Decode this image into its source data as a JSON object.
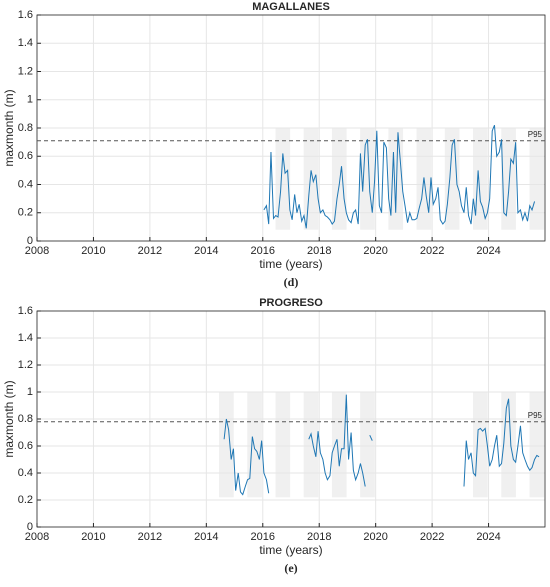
{
  "chart_data": [
    {
      "type": "line",
      "title": "MAGALLANES",
      "xlabel": "time (years)",
      "ylabel": "maxmonth (m)",
      "caption": "(d)",
      "xlim": [
        2008,
        2026
      ],
      "xticks": [
        2008,
        2010,
        2012,
        2014,
        2016,
        2018,
        2020,
        2022,
        2024
      ],
      "ylim": [
        0,
        1.6
      ],
      "yticks": [
        0,
        0.2,
        0.4,
        0.6,
        0.8,
        1,
        1.2,
        1.4,
        1.6
      ],
      "grid": true,
      "reference": {
        "value": 0.71,
        "label": "P95"
      },
      "bands": [
        [
          2016.45,
          2016.97
        ],
        [
          2017.45,
          2017.97
        ],
        [
          2018.45,
          2018.97
        ],
        [
          2019.45,
          2019.97
        ],
        [
          2020.45,
          2020.97
        ],
        [
          2021.45,
          2021.97
        ],
        [
          2022.45,
          2022.97
        ],
        [
          2023.45,
          2023.97
        ],
        [
          2024.45,
          2024.97
        ],
        [
          2025.45,
          2025.97
        ]
      ],
      "band_ylim": [
        0.08,
        0.8
      ],
      "x": [
        2016.04,
        2016.13,
        2016.21,
        2016.29,
        2016.38,
        2016.46,
        2016.54,
        2016.63,
        2016.71,
        2016.79,
        2016.88,
        2016.96,
        2017.04,
        2017.13,
        2017.21,
        2017.29,
        2017.38,
        2017.46,
        2017.54,
        2017.63,
        2017.71,
        2017.79,
        2017.88,
        2017.96,
        2018.04,
        2018.13,
        2018.21,
        2018.29,
        2018.38,
        2018.46,
        2018.54,
        2018.63,
        2018.71,
        2018.79,
        2018.88,
        2018.96,
        2019.04,
        2019.13,
        2019.21,
        2019.29,
        2019.38,
        2019.46,
        2019.54,
        2019.63,
        2019.71,
        2019.79,
        2019.88,
        2019.96,
        2020.04,
        2020.13,
        2020.21,
        2020.29,
        2020.38,
        2020.46,
        2020.54,
        2020.63,
        2020.71,
        2020.79,
        2020.88,
        2020.96,
        2021.04,
        2021.13,
        2021.21,
        2021.29,
        2021.38,
        2021.46,
        2021.54,
        2021.63,
        2021.71,
        2021.79,
        2021.88,
        2021.96,
        2022.04,
        2022.13,
        2022.21,
        2022.29,
        2022.38,
        2022.46,
        2022.54,
        2022.63,
        2022.71,
        2022.79,
        2022.88,
        2022.96,
        2023.04,
        2023.13,
        2023.21,
        2023.29,
        2023.38,
        2023.46,
        2023.54,
        2023.63,
        2023.71,
        2023.79,
        2023.88,
        2023.96,
        2024.04,
        2024.13,
        2024.21,
        2024.29,
        2024.38,
        2024.46,
        2024.54,
        2024.63,
        2024.71,
        2024.79,
        2024.88,
        2024.96,
        2025.04,
        2025.13,
        2025.21,
        2025.29,
        2025.38,
        2025.46,
        2025.54,
        2025.63
      ],
      "series": [
        {
          "color": "#1f77b4",
          "values": [
            0.22,
            0.25,
            0.12,
            0.63,
            0.16,
            0.18,
            0.17,
            0.35,
            0.62,
            0.48,
            0.5,
            0.22,
            0.15,
            0.33,
            0.2,
            0.26,
            0.14,
            0.18,
            0.09,
            0.32,
            0.5,
            0.42,
            0.47,
            0.3,
            0.2,
            0.22,
            0.18,
            0.17,
            0.15,
            0.12,
            0.14,
            0.3,
            0.4,
            0.53,
            0.3,
            0.2,
            0.15,
            0.13,
            0.2,
            0.22,
            0.12,
            0.62,
            0.35,
            0.68,
            0.72,
            0.35,
            0.2,
            0.42,
            0.78,
            0.25,
            0.2,
            0.7,
            0.66,
            0.3,
            0.18,
            0.63,
            0.2,
            0.77,
            0.55,
            0.35,
            0.25,
            0.13,
            0.2,
            0.15,
            0.15,
            0.16,
            0.23,
            0.3,
            0.45,
            0.32,
            0.2,
            0.45,
            0.26,
            0.3,
            0.38,
            0.15,
            0.12,
            0.14,
            0.26,
            0.45,
            0.68,
            0.72,
            0.4,
            0.35,
            0.25,
            0.2,
            0.38,
            0.18,
            0.12,
            0.3,
            0.18,
            0.5,
            0.28,
            0.24,
            0.16,
            0.2,
            0.3,
            0.78,
            0.82,
            0.6,
            0.63,
            0.72,
            0.2,
            0.18,
            0.35,
            0.58,
            0.55,
            0.7,
            0.2,
            0.22,
            0.15,
            0.2,
            0.14,
            0.25,
            0.22,
            0.28
          ]
        }
      ]
    },
    {
      "type": "line",
      "title": "PROGRESO",
      "xlabel": "time (years)",
      "ylabel": "maxmonth (m)",
      "caption": "(e)",
      "xlim": [
        2008,
        2026
      ],
      "xticks": [
        2008,
        2010,
        2012,
        2014,
        2016,
        2018,
        2020,
        2022,
        2024
      ],
      "ylim": [
        0,
        1.6
      ],
      "yticks": [
        0,
        0.2,
        0.4,
        0.6,
        0.8,
        1,
        1.2,
        1.4,
        1.6
      ],
      "grid": true,
      "reference": {
        "value": 0.78,
        "label": "P95"
      },
      "bands": [
        [
          2014.45,
          2014.97
        ],
        [
          2015.45,
          2015.97
        ],
        [
          2016.45,
          2016.97
        ],
        [
          2017.45,
          2017.97
        ],
        [
          2018.45,
          2018.97
        ],
        [
          2019.45,
          2019.97
        ],
        [
          2023.45,
          2023.97
        ],
        [
          2024.45,
          2024.97
        ],
        [
          2025.45,
          2025.97
        ]
      ],
      "band_ylim": [
        0.22,
        1.0
      ],
      "x": [
        2014.63,
        2014.71,
        2014.79,
        2014.88,
        2014.96,
        2015.04,
        2015.13,
        2015.21,
        2015.29,
        2015.38,
        2015.46,
        2015.54,
        2015.63,
        2015.71,
        2015.79,
        2015.88,
        2015.96,
        2016.04,
        2016.13,
        2016.21,
        2016.29,
        2017.63,
        2017.71,
        2017.79,
        2017.88,
        2017.96,
        2018.04,
        2018.13,
        2018.21,
        2018.29,
        2018.38,
        2018.46,
        2018.54,
        2018.63,
        2018.71,
        2018.79,
        2018.88,
        2018.96,
        2019.04,
        2019.13,
        2019.21,
        2019.29,
        2019.38,
        2019.46,
        2019.54,
        2019.63,
        2019.71,
        2019.79,
        2019.88,
        2019.96,
        2023.13,
        2023.21,
        2023.29,
        2023.38,
        2023.46,
        2023.54,
        2023.63,
        2023.71,
        2023.79,
        2023.88,
        2023.96,
        2024.04,
        2024.13,
        2024.21,
        2024.29,
        2024.38,
        2024.46,
        2024.54,
        2024.63,
        2024.71,
        2024.79,
        2024.88,
        2024.96,
        2025.04,
        2025.13,
        2025.21,
        2025.29,
        2025.38,
        2025.46,
        2025.54,
        2025.63,
        2025.71,
        2025.79
      ],
      "series": [
        {
          "color": "#1f77b4",
          "values": [
            0.65,
            0.8,
            0.72,
            0.5,
            0.58,
            0.27,
            0.4,
            0.26,
            0.24,
            0.3,
            0.35,
            0.36,
            0.67,
            0.58,
            0.56,
            0.5,
            0.64,
            0.4,
            0.35,
            0.25,
            null,
            0.65,
            0.69,
            0.6,
            0.52,
            0.71,
            0.55,
            0.5,
            0.4,
            0.35,
            0.38,
            0.55,
            0.6,
            0.65,
            0.45,
            0.58,
            0.58,
            0.98,
            0.5,
            0.7,
            0.42,
            0.35,
            0.4,
            0.47,
            0.4,
            0.3,
            null,
            0.68,
            0.64,
            null,
            0.3,
            0.64,
            0.5,
            0.55,
            0.4,
            0.38,
            0.72,
            0.73,
            0.71,
            0.73,
            0.6,
            0.45,
            0.5,
            0.6,
            0.68,
            0.45,
            0.47,
            0.62,
            0.88,
            0.95,
            0.6,
            0.5,
            0.48,
            0.6,
            0.75,
            0.55,
            0.5,
            0.45,
            0.42,
            0.44,
            0.5,
            0.53,
            0.52
          ]
        }
      ]
    }
  ]
}
